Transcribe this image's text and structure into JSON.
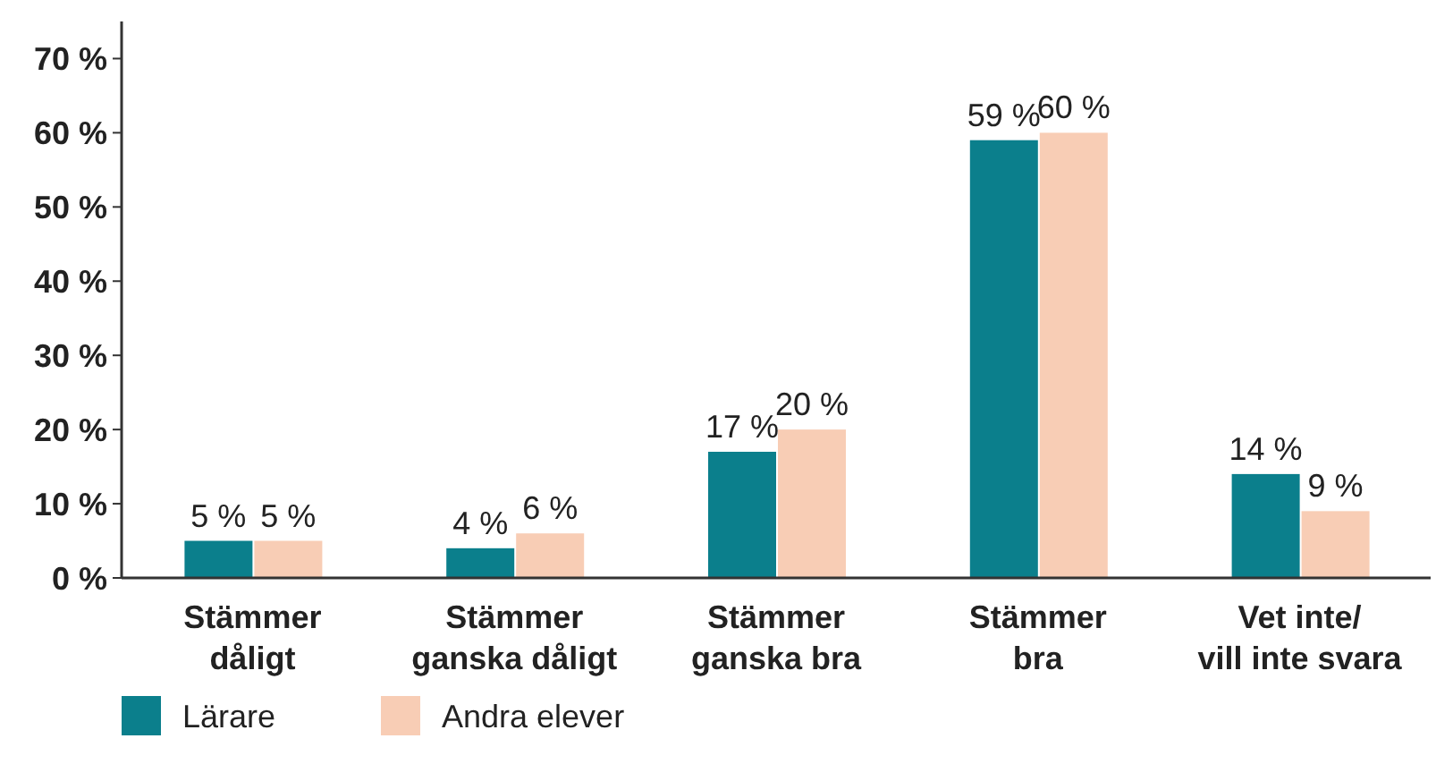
{
  "chart_data": {
    "type": "bar",
    "categories": [
      "Stämmer\ndåligt",
      "Stämmer\nganska dåligt",
      "Stämmer\nganska bra",
      "Stämmer\nbra",
      "Vet inte/\nvill inte svara"
    ],
    "series": [
      {
        "name": "Lärare",
        "color": "#0b7f8c",
        "values": [
          5,
          4,
          17,
          59,
          14
        ],
        "value_labels": [
          "5 %",
          "4 %",
          "17 %",
          "59 %",
          "14 %"
        ]
      },
      {
        "name": "Andra elever",
        "color": "#f8cdb5",
        "values": [
          5,
          6,
          20,
          60,
          9
        ],
        "value_labels": [
          "5 %",
          "6 %",
          "20 %",
          "60 %",
          "9 %"
        ]
      }
    ],
    "ylim": [
      0,
      75
    ],
    "yticks": [
      {
        "value": 0,
        "label": "0 %"
      },
      {
        "value": 10,
        "label": "10 %"
      },
      {
        "value": 20,
        "label": "20 %"
      },
      {
        "value": 30,
        "label": "30 %"
      },
      {
        "value": 40,
        "label": "40 %"
      },
      {
        "value": 50,
        "label": "50 %"
      },
      {
        "value": 60,
        "label": "60 %"
      },
      {
        "value": 70,
        "label": "70 %"
      }
    ],
    "grid": false,
    "legend": "bottom left"
  }
}
